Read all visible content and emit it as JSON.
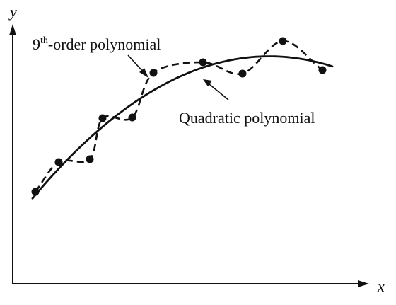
{
  "chart_data": {
    "type": "scatter",
    "title": "",
    "xlabel": "x",
    "ylabel": "y",
    "x_ticks": [],
    "y_ticks": [],
    "grid": false,
    "points": [
      [
        50,
        271
      ],
      [
        83,
        229
      ],
      [
        127,
        225
      ],
      [
        145,
        167
      ],
      [
        187,
        166
      ],
      [
        217,
        103
      ],
      [
        287,
        88
      ],
      [
        343,
        104
      ],
      [
        400,
        58
      ],
      [
        456,
        99
      ]
    ],
    "series": [
      {
        "name": "9th-order polynomial",
        "style": "dashed",
        "fit": "interpolating"
      },
      {
        "name": "Quadratic polynomial",
        "style": "solid",
        "fit": "least-squares quadratic"
      }
    ],
    "annotations": [
      {
        "text_main": "9",
        "text_sup": "th",
        "text_rest": "-order polynomial",
        "target_series": 0
      },
      {
        "text": "Quadratic polynomial",
        "target_series": 1
      }
    ]
  }
}
